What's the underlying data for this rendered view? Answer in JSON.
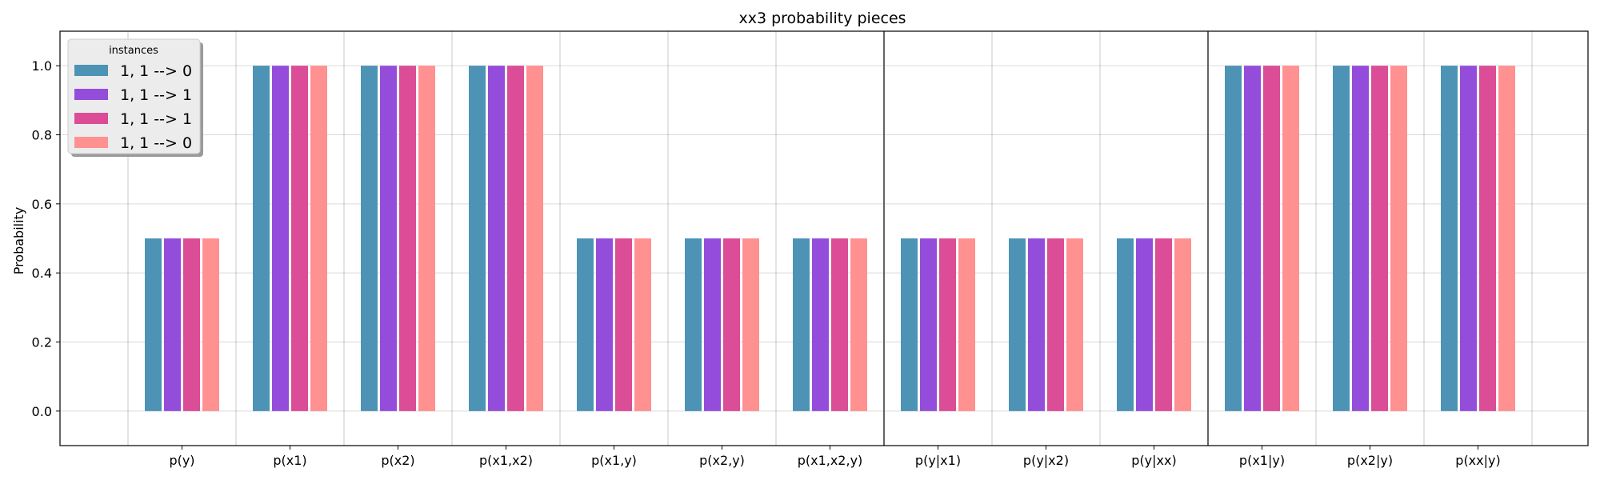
{
  "chart_data": {
    "type": "bar",
    "title": "xx3 probability pieces",
    "xlabel": "",
    "ylabel": "Probability",
    "ylim": [
      -0.1,
      1.1
    ],
    "yticks": [
      0.0,
      0.2,
      0.4,
      0.6,
      0.8,
      1.0
    ],
    "ytick_labels": [
      "0.0",
      "0.2",
      "0.4",
      "0.6",
      "0.8",
      "1.0"
    ],
    "categories": [
      "p(y)",
      "p(x1)",
      "p(x2)",
      "p(x1,x2)",
      "p(x1,y)",
      "p(x2,y)",
      "p(x1,x2,y)",
      "p(y|x1)",
      "p(y|x2)",
      "p(y|xx)",
      "p(x1|y)",
      "p(x2|y)",
      "p(xx|y)"
    ],
    "group_separators_after": [
      "p(x1,x2,y)",
      "p(y|xx)"
    ],
    "grid": true,
    "legend": {
      "title": "instances",
      "placement": "top-left"
    },
    "series": [
      {
        "name": "1, 1 --> 0",
        "color": "#4c93b6",
        "values": [
          0.5,
          1.0,
          1.0,
          1.0,
          0.5,
          0.5,
          0.5,
          0.5,
          0.5,
          0.5,
          1.0,
          1.0,
          1.0
        ]
      },
      {
        "name": "1, 1 --> 1",
        "color": "#944ddb",
        "values": [
          0.5,
          1.0,
          1.0,
          1.0,
          0.5,
          0.5,
          0.5,
          0.5,
          0.5,
          0.5,
          1.0,
          1.0,
          1.0
        ]
      },
      {
        "name": "1, 1 --> 1",
        "color": "#db4d96",
        "values": [
          0.5,
          1.0,
          1.0,
          1.0,
          0.5,
          0.5,
          0.5,
          0.5,
          0.5,
          0.5,
          1.0,
          1.0,
          1.0
        ]
      },
      {
        "name": "1, 1 --> 0",
        "color": "#ff9191",
        "values": [
          0.5,
          1.0,
          1.0,
          1.0,
          0.5,
          0.5,
          0.5,
          0.5,
          0.5,
          0.5,
          1.0,
          1.0,
          1.0
        ]
      }
    ]
  }
}
